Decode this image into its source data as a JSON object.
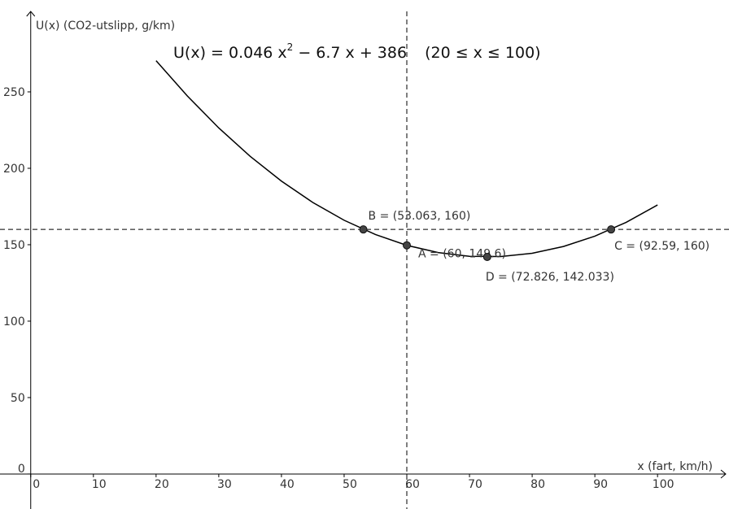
{
  "chart_data": {
    "type": "line",
    "formula": [
      "U(x) = 0.046 x",
      "2",
      " − 6.7 x + 386",
      "(20 ≤ x ≤ 100)"
    ],
    "ylabel": "U(x) (CO2-utslipp, g/km)",
    "xlabel": "x (fart, km/h)",
    "x": [
      20,
      25,
      30,
      35,
      40,
      45,
      50,
      55,
      60,
      65,
      70,
      75,
      80,
      85,
      90,
      95,
      100
    ],
    "series": [
      {
        "color": "#000000",
        "values": [
          270.4,
          247.25,
          226.4,
          207.85,
          191.6,
          177.65,
          166,
          156.65,
          149.6,
          144.85,
          142.4,
          142.25,
          144.4,
          148.85,
          155.6,
          164.65,
          176
        ]
      }
    ],
    "xlim": [
      -4.9,
      111.4
    ],
    "ylim": [
      -22.9,
      310.1
    ],
    "xticks": [
      0,
      10,
      20,
      30,
      40,
      50,
      60,
      70,
      80,
      90,
      100
    ],
    "yticks": [
      0,
      50,
      100,
      150,
      200,
      250
    ],
    "vlines": [
      60
    ],
    "hlines": [
      160
    ],
    "points": [
      {
        "label": "B = (53.063, 160)",
        "x": 53.063,
        "y": 160
      },
      {
        "label": "A = (60, 149.6)",
        "x": 60,
        "y": 149.6
      },
      {
        "label": "C = (92.59, 160)",
        "x": 92.59,
        "y": 160
      },
      {
        "label": "D = (72.826, 142.033)",
        "x": 72.826,
        "y": 142.033
      }
    ]
  }
}
